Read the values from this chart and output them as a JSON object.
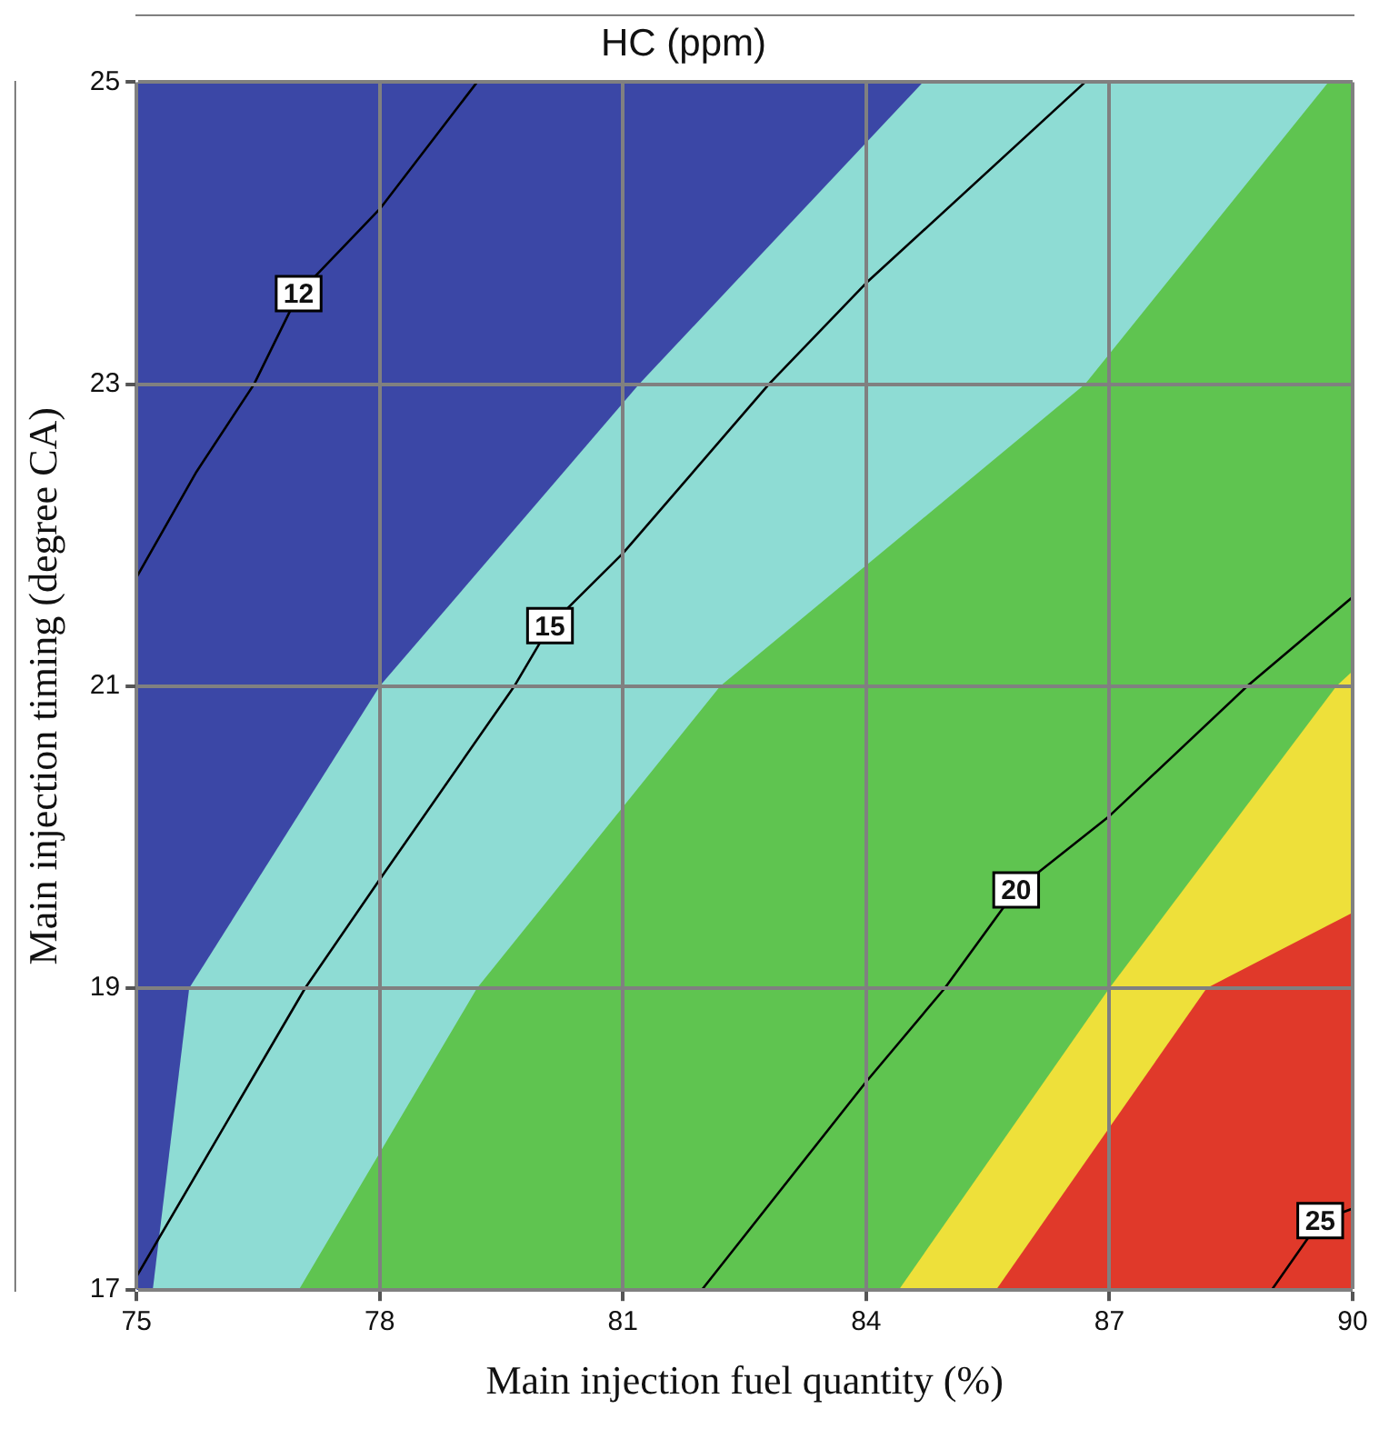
{
  "chart_data": {
    "type": "line",
    "title": "HC (ppm)",
    "xlabel": "Main injection fuel quantity (%)",
    "ylabel": "Main injection timing (degree CA)",
    "xlim": [
      75,
      90
    ],
    "xticks": [
      75,
      78,
      81,
      84,
      87,
      90
    ],
    "ylim": [
      17,
      25
    ],
    "yticks": [
      17,
      19,
      21,
      23,
      25
    ],
    "grid": true,
    "legend": false,
    "marker": "none",
    "line_style": "solid",
    "series": [
      {
        "type": "area",
        "color": "#3b47a6",
        "x": [
          75,
          90
        ],
        "values": [
          25,
          25
        ]
      },
      {
        "type": "area",
        "color": "#8edcd4",
        "x": [
          75.2,
          75.65,
          78,
          81.2,
          84.7,
          90
        ],
        "values": [
          17,
          19,
          21,
          23,
          25,
          25
        ]
      },
      {
        "type": "area",
        "color": "#5fc450",
        "x": [
          77,
          79.2,
          82.2,
          86.7,
          89.7,
          90
        ],
        "values": [
          17,
          19,
          21,
          23,
          25,
          25
        ]
      },
      {
        "type": "area",
        "color": "#eee03a",
        "x": [
          84.4,
          87,
          89.8,
          90
        ],
        "values": [
          17,
          19,
          21,
          21.1
        ]
      },
      {
        "type": "area",
        "color": "#e0392a",
        "x": [
          85.6,
          88.2,
          90
        ],
        "values": [
          17,
          19,
          19.5
        ]
      },
      {
        "type": "line",
        "name": "12",
        "color": "#000000",
        "x": [
          75,
          75.74,
          76.45,
          77,
          78,
          79.2
        ],
        "values": [
          21.72,
          22.42,
          23,
          23.6,
          24.16,
          25
        ]
      },
      {
        "type": "line",
        "name": "15",
        "color": "#000000",
        "x": [
          75,
          77.08,
          78,
          79.66,
          80.1,
          81,
          82.8,
          84,
          86.7
        ],
        "values": [
          17.09,
          19,
          19.72,
          21,
          21.4,
          21.88,
          23,
          23.67,
          25
        ]
      },
      {
        "type": "line",
        "name": "20",
        "color": "#000000",
        "x": [
          81.97,
          84,
          84.97,
          85.85,
          87,
          88.7,
          90
        ],
        "values": [
          17,
          18.38,
          19,
          19.65,
          20.14,
          21,
          21.59
        ]
      },
      {
        "type": "line",
        "name": "25",
        "color": "#000000",
        "x": [
          89,
          89.6,
          90
        ],
        "values": [
          17,
          17.46,
          17.54
        ]
      }
    ]
  }
}
